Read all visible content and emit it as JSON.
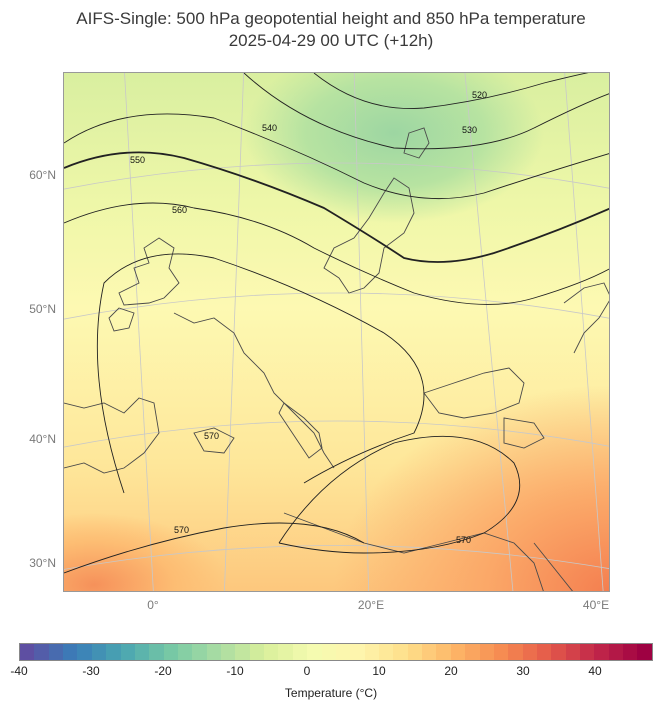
{
  "title": {
    "line1": "AIFS-Single: 500 hPa geopotential height and 850 hPa temperature",
    "line2": "2025-04-29 00 UTC (+12h)"
  },
  "map": {
    "lat_labels": [
      "60°N",
      "50°N",
      "40°N",
      "30°N"
    ],
    "lon_labels": [
      "0°",
      "20°E",
      "40°E"
    ],
    "contour_labels": [
      "520",
      "530",
      "540",
      "550",
      "560",
      "570",
      "570",
      "570"
    ]
  },
  "colorbar": {
    "ticks": [
      "-40",
      "-30",
      "-20",
      "-10",
      "0",
      "10",
      "20",
      "30",
      "40"
    ],
    "label": "Temperature (°C)",
    "colors": [
      "#5e4fa2",
      "#3a7db8",
      "#4aa5b1",
      "#76c8a5",
      "#a8dca3",
      "#d9ef9b",
      "#f5fbb0",
      "#fef5ad",
      "#fedf8a",
      "#fdb567",
      "#f68b51",
      "#e4594a",
      "#c1274a",
      "#9e0142"
    ]
  }
}
